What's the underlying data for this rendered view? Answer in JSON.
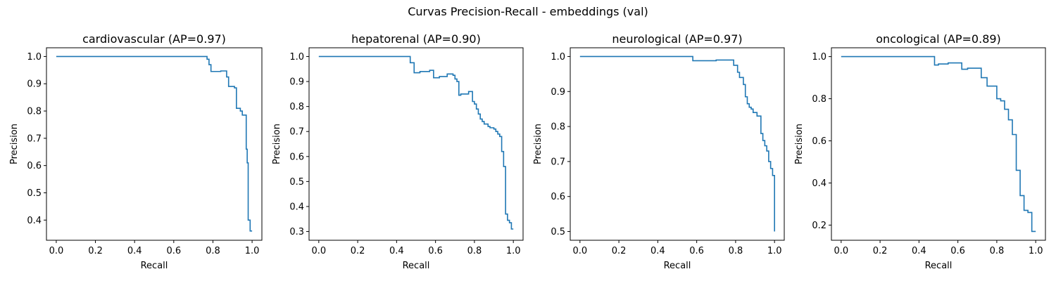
{
  "figure": {
    "title": "Curvas Precision-Recall - embeddings (val)"
  },
  "colors": {
    "line": "#1f77b4",
    "axis": "#000000",
    "background": "#ffffff"
  },
  "chart_data": [
    {
      "type": "line",
      "drawstyle": "steps-post",
      "title": "cardiovascular (AP=0.97)",
      "xlabel": "Recall",
      "ylabel": "Precision",
      "xlim": [
        -0.05,
        1.05
      ],
      "ylim": [
        0.326,
        1.032
      ],
      "xticks": [
        0.0,
        0.2,
        0.4,
        0.6,
        0.8,
        1.0
      ],
      "xtick_labels": [
        "0.0",
        "0.2",
        "0.4",
        "0.6",
        "0.8",
        "1.0"
      ],
      "yticks": [
        0.4,
        0.5,
        0.6,
        0.7,
        0.8,
        0.9,
        1.0
      ],
      "ytick_labels": [
        "0.4",
        "0.5",
        "0.6",
        "0.7",
        "0.8",
        "0.9",
        "1.0"
      ],
      "series": [
        {
          "recall": [
            0.0,
            0.77,
            0.78,
            0.79,
            0.84,
            0.87,
            0.88,
            0.91,
            0.92,
            0.94,
            0.95,
            0.97,
            0.975,
            0.98,
            0.99,
            1.0
          ],
          "precision": [
            1.0,
            0.99,
            0.97,
            0.945,
            0.947,
            0.925,
            0.89,
            0.885,
            0.81,
            0.8,
            0.785,
            0.66,
            0.61,
            0.4,
            0.36,
            0.36
          ]
        }
      ]
    },
    {
      "type": "line",
      "drawstyle": "steps-post",
      "title": "hepatorenal (AP=0.90)",
      "xlabel": "Recall",
      "ylabel": "Precision",
      "xlim": [
        -0.05,
        1.05
      ],
      "ylim": [
        0.265,
        1.035
      ],
      "xticks": [
        0.0,
        0.2,
        0.4,
        0.6,
        0.8,
        1.0
      ],
      "xtick_labels": [
        "0.0",
        "0.2",
        "0.4",
        "0.6",
        "0.8",
        "1.0"
      ],
      "yticks": [
        0.3,
        0.4,
        0.5,
        0.6,
        0.7,
        0.8,
        0.9,
        1.0
      ],
      "ytick_labels": [
        "0.3",
        "0.4",
        "0.5",
        "0.6",
        "0.7",
        "0.8",
        "0.9",
        "1.0"
      ],
      "series": [
        {
          "recall": [
            0.0,
            0.47,
            0.49,
            0.52,
            0.57,
            0.59,
            0.62,
            0.66,
            0.69,
            0.7,
            0.71,
            0.72,
            0.73,
            0.77,
            0.79,
            0.8,
            0.81,
            0.82,
            0.83,
            0.84,
            0.85,
            0.87,
            0.88,
            0.9,
            0.91,
            0.92,
            0.93,
            0.94,
            0.95,
            0.96,
            0.97,
            0.98,
            0.99,
            1.0
          ],
          "precision": [
            1.0,
            0.975,
            0.935,
            0.94,
            0.945,
            0.915,
            0.92,
            0.93,
            0.925,
            0.91,
            0.9,
            0.845,
            0.85,
            0.86,
            0.82,
            0.81,
            0.79,
            0.77,
            0.75,
            0.74,
            0.73,
            0.72,
            0.715,
            0.71,
            0.7,
            0.69,
            0.68,
            0.62,
            0.56,
            0.37,
            0.345,
            0.335,
            0.31,
            0.31
          ]
        }
      ]
    },
    {
      "type": "line",
      "drawstyle": "steps-post",
      "title": "neurological (AP=0.97)",
      "xlabel": "Recall",
      "ylabel": "Precision",
      "xlim": [
        -0.05,
        1.05
      ],
      "ylim": [
        0.475,
        1.025
      ],
      "xticks": [
        0.0,
        0.2,
        0.4,
        0.6,
        0.8,
        1.0
      ],
      "xtick_labels": [
        "0.0",
        "0.2",
        "0.4",
        "0.6",
        "0.8",
        "1.0"
      ],
      "yticks": [
        0.5,
        0.6,
        0.7,
        0.8,
        0.9,
        1.0
      ],
      "ytick_labels": [
        "0.5",
        "0.6",
        "0.7",
        "0.8",
        "0.9",
        "1.0"
      ],
      "series": [
        {
          "recall": [
            0.0,
            0.58,
            0.7,
            0.79,
            0.81,
            0.82,
            0.84,
            0.85,
            0.86,
            0.87,
            0.88,
            0.89,
            0.91,
            0.93,
            0.94,
            0.95,
            0.96,
            0.97,
            0.98,
            0.99,
            1.0
          ],
          "precision": [
            1.0,
            0.988,
            0.99,
            0.975,
            0.955,
            0.94,
            0.92,
            0.885,
            0.865,
            0.855,
            0.85,
            0.84,
            0.83,
            0.78,
            0.76,
            0.745,
            0.73,
            0.7,
            0.68,
            0.66,
            0.5
          ]
        }
      ]
    },
    {
      "type": "line",
      "drawstyle": "steps-post",
      "title": "oncological (AP=0.89)",
      "xlabel": "Recall",
      "ylabel": "Precision",
      "xlim": [
        -0.05,
        1.05
      ],
      "ylim": [
        0.128,
        1.042
      ],
      "xticks": [
        0.0,
        0.2,
        0.4,
        0.6,
        0.8,
        1.0
      ],
      "xtick_labels": [
        "0.0",
        "0.2",
        "0.4",
        "0.6",
        "0.8",
        "1.0"
      ],
      "yticks": [
        0.2,
        0.4,
        0.6,
        0.8,
        1.0
      ],
      "ytick_labels": [
        "0.2",
        "0.4",
        "0.6",
        "0.8",
        "1.0"
      ],
      "series": [
        {
          "recall": [
            0.0,
            0.48,
            0.5,
            0.55,
            0.62,
            0.65,
            0.72,
            0.75,
            0.78,
            0.8,
            0.82,
            0.84,
            0.86,
            0.88,
            0.9,
            0.92,
            0.94,
            0.96,
            0.98,
            1.0
          ],
          "precision": [
            1.0,
            0.96,
            0.965,
            0.97,
            0.94,
            0.945,
            0.9,
            0.86,
            0.86,
            0.8,
            0.79,
            0.75,
            0.7,
            0.63,
            0.46,
            0.34,
            0.27,
            0.26,
            0.17,
            0.17
          ]
        }
      ]
    }
  ]
}
